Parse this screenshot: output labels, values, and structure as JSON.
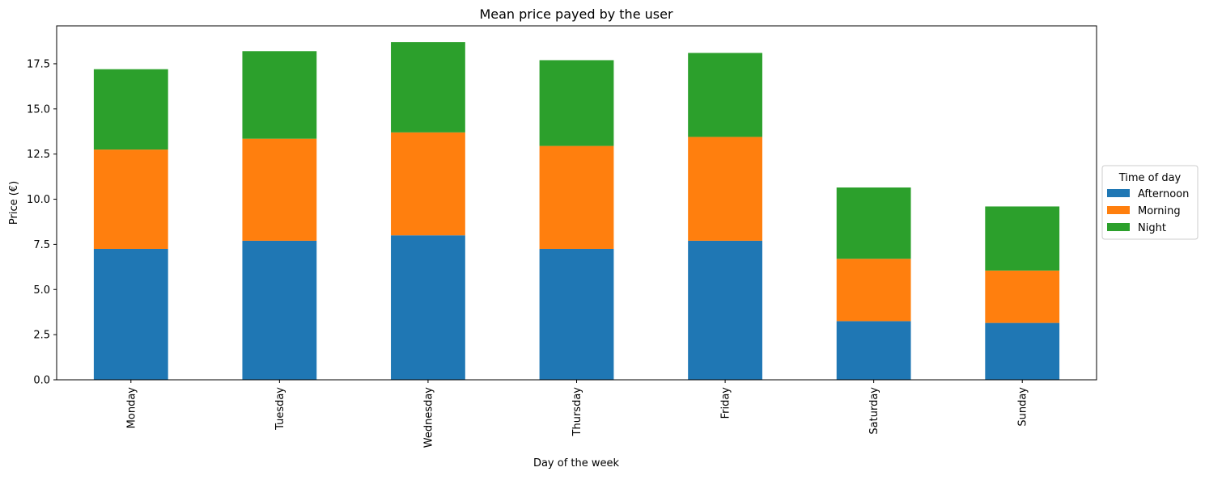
{
  "chart_data": {
    "type": "bar",
    "stacked": true,
    "title": "Mean price payed by the user",
    "xlabel": "Day of the week",
    "ylabel": "Price (€)",
    "ylim": [
      0,
      19.6
    ],
    "yticks": [
      0.0,
      2.5,
      5.0,
      7.5,
      10.0,
      12.5,
      15.0,
      17.5
    ],
    "ytick_labels": [
      "0.0",
      "2.5",
      "5.0",
      "7.5",
      "10.0",
      "12.5",
      "15.0",
      "17.5"
    ],
    "categories": [
      "Monday",
      "Tuesday",
      "Wednesday",
      "Thursday",
      "Friday",
      "Saturday",
      "Sunday"
    ],
    "series": [
      {
        "name": "Afternoon",
        "color": "#1f77b4",
        "values": [
          7.25,
          7.7,
          8.0,
          7.25,
          7.7,
          3.25,
          3.15
        ]
      },
      {
        "name": "Morning",
        "color": "#ff7f0e",
        "values": [
          5.5,
          5.65,
          5.7,
          5.7,
          5.75,
          3.45,
          2.9
        ]
      },
      {
        "name": "Night",
        "color": "#2ca02c",
        "values": [
          4.45,
          4.85,
          5.0,
          4.75,
          4.65,
          3.95,
          3.55
        ]
      }
    ],
    "legend": {
      "title": "Time of day",
      "placement": "center-right-outside"
    },
    "grid": false
  }
}
